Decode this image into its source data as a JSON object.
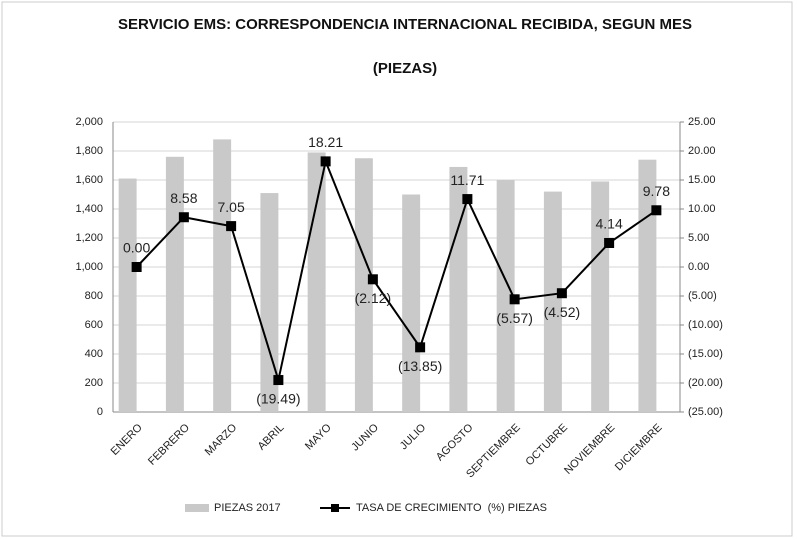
{
  "chart_data": {
    "type": "bar_line",
    "title": "SERVICIO  EMS: CORRESPONDENCIA INTERNACIONAL RECIBIDA, SEGUN MES",
    "subtitle": "(PIEZAS)",
    "categories": [
      "ENERO",
      "FEBRERO",
      "MARZO",
      "ABRIL",
      "MAYO",
      "JUNIO",
      "JULIO",
      "AGOSTO",
      "SEPTIEMBRE",
      "OCTUBRE",
      "NOVIEMBRE",
      "DICIEMBRE"
    ],
    "series": [
      {
        "name": "PIEZAS 2017",
        "type": "bar",
        "color": "#c9c9c9",
        "values": [
          1610,
          1760,
          1880,
          1510,
          1790,
          1750,
          1500,
          1690,
          1600,
          1520,
          1590,
          1740
        ]
      },
      {
        "name": "TASA DE CRECIMIENTO  (%) PIEZAS",
        "type": "line",
        "axis": "y2",
        "color": "#000000",
        "values": [
          0.0,
          8.58,
          7.05,
          -19.49,
          18.21,
          -2.12,
          -13.85,
          11.71,
          -5.57,
          -4.52,
          4.14,
          9.78
        ],
        "value_labels": [
          "0.00",
          "8.58",
          "7.05",
          "(19.49)",
          "18.21",
          "(2.12)",
          "(13.85)",
          "11.71",
          "(5.57)",
          "(4.52)",
          "4.14",
          "9.78"
        ]
      }
    ],
    "ylim": [
      0,
      2000
    ],
    "yticks": [
      0,
      200,
      400,
      600,
      800,
      {
        "value": 1000,
        "label": "1,000"
      },
      {
        "value": 1200,
        "label": "1,200"
      },
      {
        "value": 1400,
        "label": "1,400"
      },
      {
        "value": 1600,
        "label": "1,600"
      },
      {
        "value": 1800,
        "label": "1,800"
      },
      {
        "value": 2000,
        "label": "2,000"
      }
    ],
    "y2lim": [
      -25,
      25
    ],
    "y2ticks": [
      {
        "value": -25,
        "label": "(25.00)"
      },
      {
        "value": -20,
        "label": "(20.00)"
      },
      {
        "value": -15,
        "label": "(15.00)"
      },
      {
        "value": -10,
        "label": "(10.00)"
      },
      {
        "value": -5,
        "label": "(5.00)"
      },
      {
        "value": 0,
        "label": "0.00"
      },
      {
        "value": 5,
        "label": "5.00"
      },
      {
        "value": 10,
        "label": "10.00"
      },
      {
        "value": 15,
        "label": "15.00"
      },
      {
        "value": 20,
        "label": "20.00"
      },
      {
        "value": 25,
        "label": "25.00"
      }
    ],
    "grid": true,
    "legend": "bottom"
  }
}
